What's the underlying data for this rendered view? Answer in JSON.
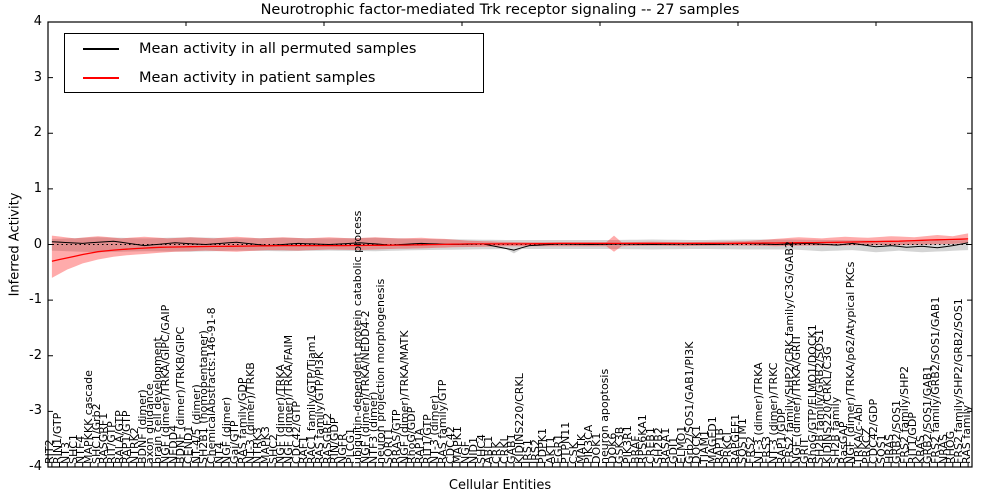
{
  "title": "Neurotrophic factor-mediated Trk receptor signaling -- 27 samples",
  "axes": {
    "ylabel": "Inferred Activity",
    "xlabel": "Cellular Entities",
    "yticks": [
      4,
      3,
      2,
      1,
      0,
      -1,
      -2,
      -3,
      -4
    ],
    "ylim": [
      -4,
      4
    ]
  },
  "legend": {
    "entries": [
      {
        "label": "Mean activity in all permuted samples",
        "color": "#000000"
      },
      {
        "label": "Mean activity in patient samples",
        "color": "#ff0000"
      }
    ]
  },
  "chart_data": {
    "type": "line",
    "title": "Neurotrophic factor-mediated Trk receptor signaling -- 27 samples",
    "xlabel": "Cellular Entities",
    "ylabel": "Inferred Activity",
    "ylim": [
      -4,
      4
    ],
    "grid": false,
    "legend_position": "upper left",
    "n_entities": 120,
    "zero_line": {
      "style": "dotted",
      "color": "#000000",
      "y": 0
    },
    "categories": [
      "RIT2",
      "RIN1/GTP",
      "NT3",
      "SHC1",
      "NTF4",
      "MAPKKK cascade",
      "SHC1/Grb2",
      "RASGRF1",
      "RIT/GTP",
      "RALA/GTP",
      "RAP1/GTP",
      "NTRK2",
      "BDNF (dimer)",
      "axon guidance",
      "brain cell development",
      "NGF (dimer)/TRKA/GIPC/GAIP",
      "NEDD4",
      "BDNF (dimer)/TRKB/GIPC",
      "CEND1",
      "NT-4/5 (dimer)",
      "SH2B1 (homopentamer)",
      "ChemicalAbstracts:146-91-8",
      "NT4",
      "NGF (dimer)",
      "Gai/GTP",
      "RAS family/GDP",
      "NT-3 (dimer)/TRKB",
      "NTRK3",
      "MAPK3",
      "SHC2",
      "NGF (dimer)/TRKA",
      "NGF (dimer)/TRKA/FAIM",
      "CDC42/GTP",
      "RAF1",
      "RAC1 family/GTP/Tiam1",
      "RAS family/GTP/PI3K",
      "RASGRF2",
      "RIN/GDP",
      "NGFR",
      "PLCG1",
      "ubiquitin-dependent protein catabolic process",
      "NGF (dimer)/TRKA/NEDD4-2",
      "NTF3 (dimer)",
      "neuron projection morphogenesis",
      "SORT1",
      "RRAS/GTP",
      "NGF (dimer)/TRKA/MATK",
      "RhoG/GDP",
      "RAP1A",
      "RIT1/GTP",
      "NT-3 (dimer)",
      "RAS family/GTP",
      "CDC42",
      "MAPK1",
      "NGF",
      "NID1",
      "SHC4",
      "ABL1",
      "CRK",
      "CRKL",
      "GAB1",
      "KIDINS220/CRKL",
      "IRS1",
      "IRS2",
      "PDPK1",
      "AKT1",
      "EGR1",
      "PTPN11",
      "CSK",
      "MATK",
      "PIK3CA",
      "DOK1",
      "neuron apoptosis",
      "DOK6",
      "GSK3B",
      "PIK3R1",
      "BRAF",
      "RPS6KA1",
      "CREB1",
      "SH2B2",
      "RASA1",
      "GDI1",
      "ELMO1",
      "Grb2/SOS1/GAB1/PI3K",
      "DOCK1",
      "TIAM1",
      "MAGED1",
      "RAP1B",
      "PRKCI",
      "RAPGEF1",
      "SQSTM1",
      "FRS2",
      "NT-3 (dimer)/TRKA",
      "FRS3",
      "NT-3 (dimer)/TRKC",
      "RAP1/GDP",
      "FRS2 family/SHP2/CRK family/C3G/GAB2",
      "NGF (dimer)/TRKA/GRIT",
      "GRIT",
      "RhoG/GTP/ELMO1/DOCK1",
      "SH2B family/GRB2/SOS1",
      "KIDINS220/CRKL/C3G",
      "SH2B family",
      "RasGAP",
      "NGF (dimer)/TRKA/p62/Atypical PKCs",
      "TRKA/c-Abl",
      "PRKCZ",
      "CDC42/GDP",
      "SOS1",
      "HRAS",
      "GRB2/SOS1",
      "FRS2 family/SHP2",
      "RIT1/GDP",
      "KRAS",
      "GRB2/SOS1/GAB1",
      "FRS2 family/GRB2/SOS1/GAB1",
      "NRAS",
      "RHOG",
      "FRS2 family/SHP2/GRB2/SOS1",
      "RAS family"
    ],
    "series": [
      {
        "name": "Mean activity in all permuted samples",
        "color": "#000000",
        "keypoints": [
          [
            0,
            0.05
          ],
          [
            4,
            0.02
          ],
          [
            8,
            0.06
          ],
          [
            12,
            -0.02
          ],
          [
            16,
            0.03
          ],
          [
            20,
            0.0
          ],
          [
            24,
            0.04
          ],
          [
            28,
            -0.02
          ],
          [
            32,
            0.02
          ],
          [
            36,
            0.0
          ],
          [
            40,
            0.03
          ],
          [
            44,
            -0.01
          ],
          [
            48,
            0.02
          ],
          [
            52,
            0.0
          ],
          [
            56,
            0.01
          ],
          [
            60,
            -0.1
          ],
          [
            62,
            -0.02
          ],
          [
            66,
            0.01
          ],
          [
            70,
            0.0
          ],
          [
            74,
            0.01
          ],
          [
            78,
            0.0
          ],
          [
            82,
            0.01
          ],
          [
            86,
            0.0
          ],
          [
            90,
            0.02
          ],
          [
            94,
            0.0
          ],
          [
            98,
            0.02
          ],
          [
            102,
            -0.01
          ],
          [
            104,
            0.02
          ],
          [
            107,
            -0.04
          ],
          [
            109,
            -0.02
          ],
          [
            111,
            -0.05
          ],
          [
            113,
            -0.03
          ],
          [
            115,
            -0.06
          ],
          [
            117,
            -0.02
          ],
          [
            119,
            0.03
          ]
        ]
      },
      {
        "name": "Mean activity in patient samples",
        "color": "#ff0000",
        "keypoints": [
          [
            0,
            -0.3
          ],
          [
            2,
            -0.24
          ],
          [
            4,
            -0.18
          ],
          [
            6,
            -0.13
          ],
          [
            8,
            -0.1
          ],
          [
            10,
            -0.08
          ],
          [
            14,
            -0.05
          ],
          [
            18,
            -0.04
          ],
          [
            24,
            -0.03
          ],
          [
            30,
            -0.02
          ],
          [
            38,
            -0.02
          ],
          [
            46,
            -0.01
          ],
          [
            54,
            0.01
          ],
          [
            60,
            0.01
          ],
          [
            66,
            0.02
          ],
          [
            72,
            0.02
          ],
          [
            80,
            0.02
          ],
          [
            88,
            0.02
          ],
          [
            96,
            0.03
          ],
          [
            102,
            0.04
          ],
          [
            106,
            0.05
          ],
          [
            110,
            0.06
          ],
          [
            114,
            0.08
          ],
          [
            119,
            0.1
          ]
        ]
      }
    ],
    "bands": [
      {
        "name": "permuted-samples-range",
        "color": "rgba(120,120,120,0.32)",
        "upper": [
          [
            0,
            0.1
          ],
          [
            6,
            0.13
          ],
          [
            12,
            0.11
          ],
          [
            18,
            0.13
          ],
          [
            24,
            0.11
          ],
          [
            30,
            0.12
          ],
          [
            36,
            0.11
          ],
          [
            42,
            0.12
          ],
          [
            48,
            0.1
          ],
          [
            54,
            0.09
          ],
          [
            60,
            0.08
          ],
          [
            66,
            0.08
          ],
          [
            72,
            0.08
          ],
          [
            78,
            0.09
          ],
          [
            84,
            0.08
          ],
          [
            90,
            0.09
          ],
          [
            96,
            0.09
          ],
          [
            102,
            0.08
          ],
          [
            108,
            0.07
          ],
          [
            114,
            0.07
          ],
          [
            119,
            0.08
          ]
        ],
        "lower": [
          [
            0,
            -0.11
          ],
          [
            6,
            -0.14
          ],
          [
            12,
            -0.12
          ],
          [
            18,
            -0.13
          ],
          [
            24,
            -0.11
          ],
          [
            30,
            -0.12
          ],
          [
            36,
            -0.11
          ],
          [
            42,
            -0.12
          ],
          [
            48,
            -0.1
          ],
          [
            54,
            -0.09
          ],
          [
            59,
            -0.08
          ],
          [
            60,
            -0.16
          ],
          [
            61,
            -0.08
          ],
          [
            66,
            -0.08
          ],
          [
            72,
            -0.08
          ],
          [
            78,
            -0.09
          ],
          [
            84,
            -0.08
          ],
          [
            90,
            -0.09
          ],
          [
            96,
            -0.09
          ],
          [
            100,
            -0.12
          ],
          [
            104,
            -0.1
          ],
          [
            107,
            -0.14
          ],
          [
            110,
            -0.11
          ],
          [
            113,
            -0.14
          ],
          [
            116,
            -0.12
          ],
          [
            119,
            -0.1
          ]
        ]
      },
      {
        "name": "patient-samples-range",
        "color": "rgba(255,0,0,0.33)",
        "upper": [
          [
            0,
            0.16
          ],
          [
            3,
            0.11
          ],
          [
            6,
            0.15
          ],
          [
            9,
            0.11
          ],
          [
            12,
            0.14
          ],
          [
            15,
            0.11
          ],
          [
            18,
            0.13
          ],
          [
            21,
            0.11
          ],
          [
            24,
            0.14
          ],
          [
            27,
            0.11
          ],
          [
            30,
            0.13
          ],
          [
            33,
            0.11
          ],
          [
            36,
            0.13
          ],
          [
            39,
            0.11
          ],
          [
            42,
            0.13
          ],
          [
            45,
            0.11
          ],
          [
            48,
            0.12
          ],
          [
            51,
            0.1
          ],
          [
            54,
            0.07
          ],
          [
            58,
            0.05
          ],
          [
            62,
            0.04
          ],
          [
            66,
            0.04
          ],
          [
            70,
            0.04
          ],
          [
            72,
            0.04
          ],
          [
            73,
            0.16
          ],
          [
            74,
            0.04
          ],
          [
            78,
            0.05
          ],
          [
            82,
            0.04
          ],
          [
            86,
            0.05
          ],
          [
            90,
            0.06
          ],
          [
            94,
            0.1
          ],
          [
            97,
            0.13
          ],
          [
            100,
            0.11
          ],
          [
            103,
            0.14
          ],
          [
            106,
            0.12
          ],
          [
            109,
            0.15
          ],
          [
            112,
            0.13
          ],
          [
            115,
            0.17
          ],
          [
            117,
            0.15
          ],
          [
            119,
            0.2
          ]
        ],
        "lower": [
          [
            0,
            -0.6
          ],
          [
            2,
            -0.45
          ],
          [
            4,
            -0.34
          ],
          [
            6,
            -0.27
          ],
          [
            8,
            -0.22
          ],
          [
            10,
            -0.19
          ],
          [
            13,
            -0.16
          ],
          [
            16,
            -0.13
          ],
          [
            20,
            -0.11
          ],
          [
            24,
            -0.13
          ],
          [
            28,
            -0.1
          ],
          [
            32,
            -0.11
          ],
          [
            36,
            -0.09
          ],
          [
            40,
            -0.1
          ],
          [
            44,
            -0.08
          ],
          [
            48,
            -0.07
          ],
          [
            52,
            -0.05
          ],
          [
            56,
            -0.04
          ],
          [
            60,
            -0.03
          ],
          [
            64,
            -0.03
          ],
          [
            68,
            -0.03
          ],
          [
            72,
            -0.03
          ],
          [
            73,
            -0.13
          ],
          [
            74,
            -0.03
          ],
          [
            78,
            -0.02
          ],
          [
            82,
            -0.03
          ],
          [
            86,
            -0.02
          ],
          [
            90,
            -0.02
          ],
          [
            94,
            -0.03
          ],
          [
            98,
            -0.02
          ],
          [
            102,
            -0.02
          ],
          [
            106,
            -0.01
          ],
          [
            110,
            -0.01
          ],
          [
            114,
            0.0
          ],
          [
            117,
            0.01
          ],
          [
            119,
            0.03
          ]
        ]
      }
    ]
  }
}
